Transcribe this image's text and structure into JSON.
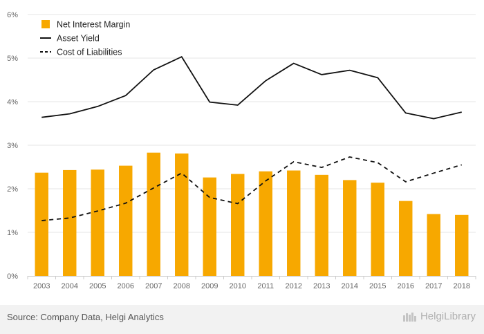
{
  "chart_data": {
    "type": "bar+line",
    "categories": [
      "2003",
      "2004",
      "2005",
      "2006",
      "2007",
      "2008",
      "2009",
      "2010",
      "2011",
      "2012",
      "2013",
      "2014",
      "2015",
      "2016",
      "2017",
      "2018"
    ],
    "series": [
      {
        "name": "Net Interest Margin",
        "kind": "bar",
        "color": "#f7a800",
        "values": [
          2.37,
          2.43,
          2.44,
          2.53,
          2.83,
          2.81,
          2.26,
          2.34,
          2.4,
          2.42,
          2.32,
          2.2,
          2.14,
          1.72,
          1.42,
          1.4
        ]
      },
      {
        "name": "Asset Yield",
        "kind": "line",
        "style": "solid",
        "color": "#111111",
        "values": [
          3.64,
          3.72,
          3.89,
          4.14,
          4.73,
          5.03,
          3.99,
          3.92,
          4.48,
          4.88,
          4.62,
          4.72,
          4.55,
          3.74,
          3.61,
          3.76
        ]
      },
      {
        "name": "Cost of Liabilities",
        "kind": "line",
        "style": "dashed",
        "color": "#111111",
        "values": [
          1.27,
          1.33,
          1.49,
          1.67,
          2.02,
          2.36,
          1.8,
          1.66,
          2.18,
          2.62,
          2.49,
          2.73,
          2.6,
          2.16,
          2.36,
          2.55
        ]
      }
    ],
    "y_ticks": [
      "0%",
      "1%",
      "2%",
      "3%",
      "4%",
      "5%",
      "6%"
    ],
    "ylim": [
      0,
      6
    ],
    "grid": "horizontal",
    "legend_position": "top-left"
  },
  "footer": {
    "source": "Source: Company Data, Helgi Analytics",
    "brand": "HelgiLibrary"
  }
}
